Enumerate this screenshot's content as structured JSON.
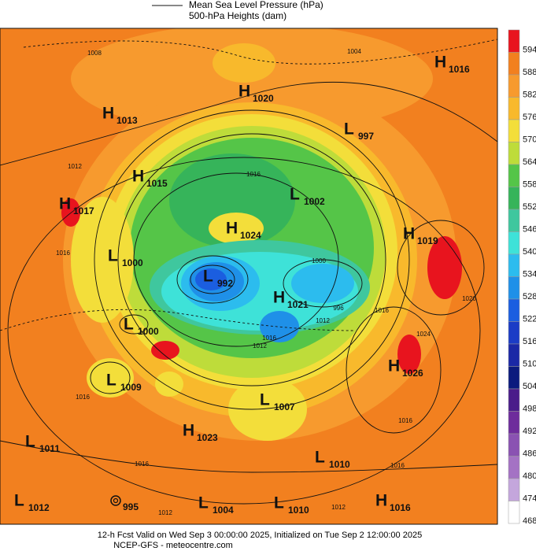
{
  "legend": {
    "items": [
      "Mean Sea Level Pressure (hPa)",
      "500-hPa Heights (dam)"
    ]
  },
  "systems": [
    {
      "type": "H",
      "value": 1016
    },
    {
      "type": "H",
      "value": 1020
    },
    {
      "type": "H",
      "value": 1013
    },
    {
      "type": "L",
      "value": 997
    },
    {
      "type": "H",
      "value": 1015
    },
    {
      "type": "L",
      "value": 1002
    },
    {
      "type": "H",
      "value": 1017
    },
    {
      "type": "H",
      "value": 1024
    },
    {
      "type": "H",
      "value": 1019
    },
    {
      "type": "L",
      "value": 1000
    },
    {
      "type": "L",
      "value": 992
    },
    {
      "type": "H",
      "value": 1021
    },
    {
      "type": "L",
      "value": 1000
    },
    {
      "type": "H",
      "value": 1026
    },
    {
      "type": "L",
      "value": 1009
    },
    {
      "type": "L",
      "value": 1007
    },
    {
      "type": "H",
      "value": 1023
    },
    {
      "type": "L",
      "value": 1011
    },
    {
      "type": "L",
      "value": 1010
    },
    {
      "type": "L",
      "value": 1012
    },
    {
      "value": 995
    },
    {
      "type": "L",
      "value": 1004
    },
    {
      "type": "L",
      "value": 1010
    },
    {
      "type": "H",
      "value": 1016
    }
  ],
  "isobar_labels": [
    1008,
    1004,
    1012,
    1016,
    1016,
    1000,
    996,
    1012,
    1016,
    1024,
    1016,
    1016,
    1016,
    1012,
    1016,
    1012,
    1020,
    1016,
    1012
  ],
  "colorbar": {
    "levels": [
      594,
      588,
      582,
      576,
      570,
      564,
      558,
      552,
      546,
      540,
      534,
      528,
      522,
      516,
      510,
      504,
      498,
      492,
      486,
      480,
      474,
      468
    ],
    "colors": [
      "#e8141e",
      "#f2801f",
      "#f79a2e",
      "#f8b92c",
      "#f3de3a",
      "#bedc3a",
      "#55c548",
      "#36b45a",
      "#3fc79e",
      "#3ee2d8",
      "#2cbcee",
      "#1f90e8",
      "#1b5ee0",
      "#1b3cc6",
      "#1a28a6",
      "#0b1a7e",
      "#4a1c8a",
      "#6e2c9c",
      "#8a52b2",
      "#a472c4",
      "#c4a6dc",
      "#ffffff"
    ]
  },
  "footer": {
    "line1": "12-h Fcst Valid on Wed Sep  3 00:00:00 2025, Initialized on Tue Sep  2 12:00:00 2025",
    "line2": "NCEP-GFS  -  meteocentre.com"
  }
}
